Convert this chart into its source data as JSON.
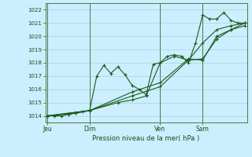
{
  "bg_color": "#cceeff",
  "grid_color": "#aad4d4",
  "line_color": "#1a5c1a",
  "marker_color": "#1a5c1a",
  "xlabel": "Pression niveau de la mer( hPa )",
  "ylim": [
    1013.5,
    1022.5
  ],
  "yticks": [
    1014,
    1015,
    1016,
    1017,
    1018,
    1019,
    1020,
    1021,
    1022
  ],
  "day_labels": [
    "Jeu",
    "Dim",
    "Ven",
    "Sam"
  ],
  "day_positions": [
    0.0,
    0.214,
    0.571,
    0.786
  ],
  "xlim": [
    0.0,
    1.0
  ],
  "series1_x": [
    0.0,
    0.036,
    0.071,
    0.107,
    0.143,
    0.179,
    0.214,
    0.25,
    0.286,
    0.321,
    0.357,
    0.393,
    0.429,
    0.464,
    0.5,
    0.536,
    0.571,
    0.607,
    0.643,
    0.679,
    0.714,
    0.75,
    0.786,
    0.821,
    0.857,
    0.893,
    0.929,
    0.964,
    1.0
  ],
  "series1_y": [
    1014.0,
    1014.0,
    1014.0,
    1014.1,
    1014.2,
    1014.3,
    1014.4,
    1017.0,
    1017.8,
    1017.2,
    1017.7,
    1017.1,
    1016.3,
    1016.0,
    1015.6,
    1017.9,
    1018.0,
    1018.5,
    1018.6,
    1018.5,
    1018.0,
    1019.5,
    1021.6,
    1021.3,
    1021.3,
    1021.8,
    1021.2,
    1021.0,
    1021.0
  ],
  "series2_x": [
    0.0,
    0.143,
    0.214,
    0.357,
    0.429,
    0.5,
    0.571,
    0.643,
    0.714,
    0.786,
    0.857,
    0.929,
    1.0
  ],
  "series2_y": [
    1014.0,
    1014.2,
    1014.4,
    1015.0,
    1015.2,
    1015.5,
    1018.0,
    1018.5,
    1018.2,
    1019.5,
    1020.5,
    1020.8,
    1021.0
  ],
  "series3_x": [
    0.0,
    0.214,
    0.429,
    0.571,
    0.714,
    0.786,
    0.857,
    0.929,
    1.0
  ],
  "series3_y": [
    1014.0,
    1014.4,
    1015.5,
    1016.2,
    1018.2,
    1018.3,
    1019.8,
    1020.5,
    1020.8
  ],
  "series4_x": [
    0.0,
    0.214,
    0.429,
    0.571,
    0.714,
    0.786,
    0.857,
    0.929,
    1.0
  ],
  "series4_y": [
    1014.0,
    1014.4,
    1015.8,
    1016.5,
    1018.3,
    1018.2,
    1020.0,
    1020.5,
    1021.0
  ]
}
